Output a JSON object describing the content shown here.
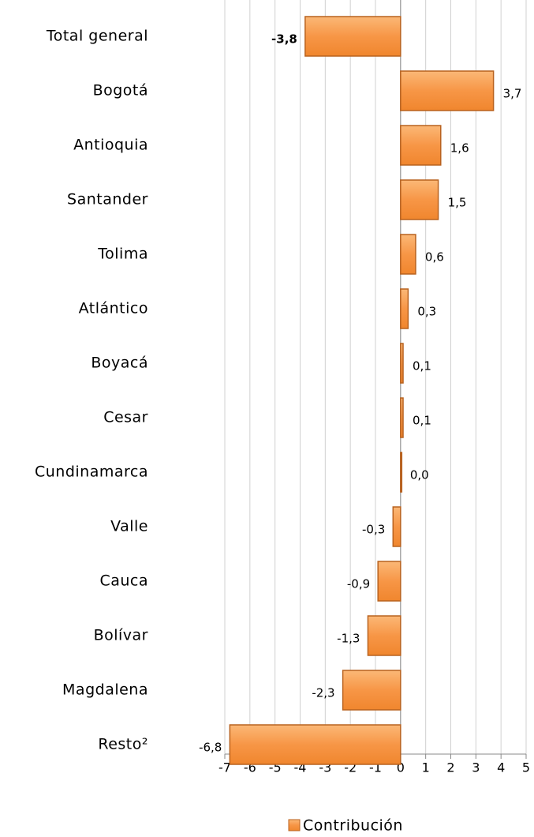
{
  "chart_data": {
    "type": "bar",
    "orientation": "horizontal",
    "categories": [
      "Total general",
      "Bogotá",
      "Antioquia",
      "Santander",
      "Tolima",
      "Atlántico",
      "Boyacá",
      "Cesar",
      "Cundinamarca",
      "Valle",
      "Cauca",
      "Bolívar",
      "Magdalena",
      "Resto²"
    ],
    "series": [
      {
        "name": "Contribución",
        "color": "#f79646",
        "values": [
          -3.8,
          3.7,
          1.6,
          1.5,
          0.6,
          0.3,
          0.1,
          0.1,
          0.0,
          -0.3,
          -0.9,
          -1.3,
          -2.3,
          -6.8
        ],
        "value_labels": [
          "-3,8",
          "3,7",
          "1,6",
          "1,5",
          "0,6",
          "0,3",
          "0,1",
          "0,1",
          "0,0",
          "-0,3",
          "-0,9",
          "-1,3",
          "-2,3",
          "-6,8"
        ]
      }
    ],
    "xlim": [
      -7,
      5
    ],
    "xticks": [
      -7,
      -6,
      -5,
      -4,
      -3,
      -2,
      -1,
      0,
      1,
      2,
      3,
      4,
      5
    ],
    "grid": true,
    "legend": "bottom"
  }
}
